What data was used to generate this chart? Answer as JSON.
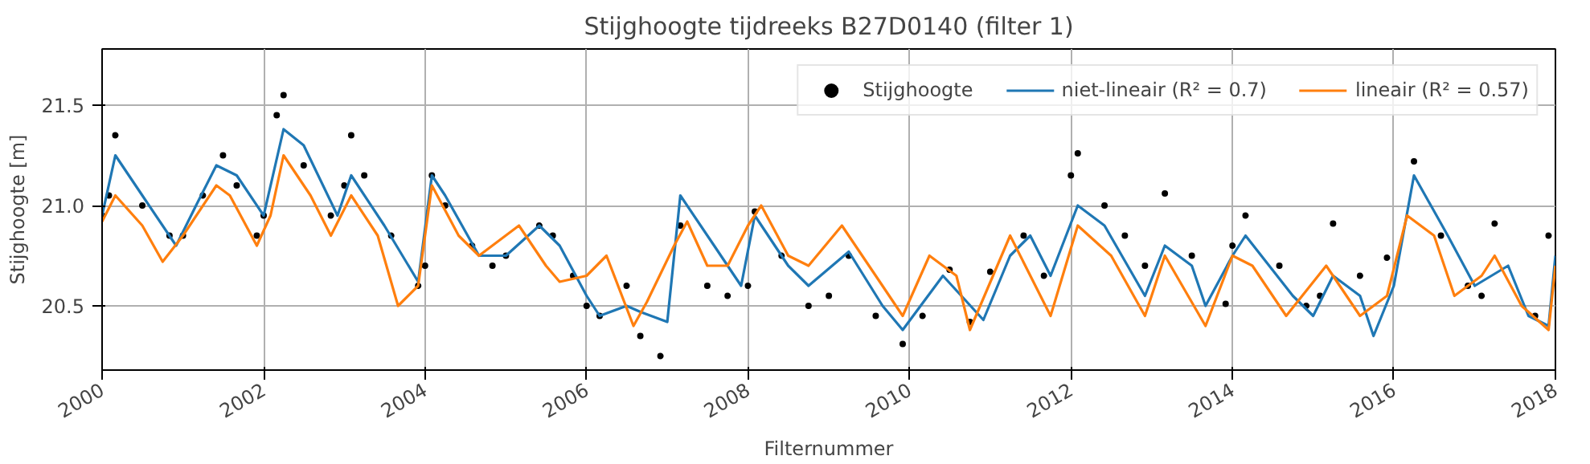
{
  "chart_data": {
    "type": "line",
    "title": "Stijghoogte tijdreeks B27D0140 (filter 1)",
    "xlabel": "Filternummer",
    "ylabel": "Stijghoogte [m]",
    "xlim": [
      "2000",
      "2018"
    ],
    "xticks": [
      "2000",
      "2002",
      "2004",
      "2006",
      "2008",
      "2010",
      "2012",
      "2014",
      "2016",
      "2018"
    ],
    "ylim": [
      20.18,
      21.78
    ],
    "yticks": [
      20.5,
      {
        "value": 21,
        "label": "21.0"
      },
      21.5
    ],
    "grid": true,
    "legend": "top right",
    "series": [
      {
        "name": "Stijghoogte",
        "type": "scatter",
        "marker": "circle",
        "color": "#000000",
        "x": [
          "2000-01",
          "2000-02",
          "2000-03",
          "2000-07",
          "2000-11",
          "2001-01",
          "2001-04",
          "2001-07",
          "2001-09",
          "2001-12",
          "2002-01",
          "2002-03",
          "2002-04",
          "2002-07",
          "2002-11",
          "2003-01",
          "2003-02",
          "2003-04",
          "2003-08",
          "2003-12",
          "2004-01",
          "2004-02",
          "2004-04",
          "2004-08",
          "2004-11",
          "2005-01",
          "2005-06",
          "2005-08",
          "2005-11",
          "2006-01",
          "2006-03",
          "2006-07",
          "2006-09",
          "2006-12",
          "2007-03",
          "2007-07",
          "2007-10",
          "2008-01",
          "2008-02",
          "2008-06",
          "2008-10",
          "2009-01",
          "2009-04",
          "2009-08",
          "2009-12",
          "2010-03",
          "2010-07",
          "2010-10",
          "2011-01",
          "2011-06",
          "2011-09",
          "2012-01",
          "2012-02",
          "2012-06",
          "2012-09",
          "2012-12",
          "2013-03",
          "2013-07",
          "2013-12",
          "2014-01",
          "2014-03",
          "2014-08",
          "2014-12",
          "2015-02",
          "2015-04",
          "2015-08",
          "2015-12",
          "2016-04",
          "2016-08",
          "2016-12",
          "2017-02",
          "2017-04",
          "2017-10",
          "2017-12"
        ],
        "values": [
          20.95,
          21.05,
          21.35,
          21.0,
          20.85,
          20.85,
          21.05,
          21.25,
          21.1,
          20.85,
          20.95,
          21.45,
          21.55,
          21.2,
          20.95,
          21.1,
          21.35,
          21.15,
          20.85,
          20.6,
          20.7,
          21.15,
          21.0,
          20.8,
          20.7,
          20.75,
          20.9,
          20.85,
          20.65,
          20.5,
          20.45,
          20.6,
          20.35,
          20.25,
          20.9,
          20.6,
          20.55,
          20.6,
          20.97,
          20.75,
          20.5,
          20.55,
          20.75,
          20.45,
          20.31,
          20.45,
          20.68,
          20.42,
          20.67,
          20.85,
          20.65,
          21.15,
          21.26,
          21.0,
          20.85,
          20.7,
          21.06,
          20.75,
          20.51,
          20.8,
          20.95,
          20.7,
          20.5,
          20.55,
          20.91,
          20.65,
          20.74,
          21.22,
          20.85,
          20.6,
          20.55,
          20.91,
          20.45,
          20.85
        ]
      },
      {
        "name": "niet-lineair (R² = 0.7)",
        "color": "#1f77b4",
        "x": [
          "2000-01",
          "2000-03",
          "2000-07",
          "2000-12",
          "2001-03",
          "2001-06",
          "2001-09",
          "2002-01",
          "2002-04",
          "2002-07",
          "2002-12",
          "2003-02",
          "2003-07",
          "2003-12",
          "2004-02",
          "2004-04",
          "2004-09",
          "2005-01",
          "2005-06",
          "2005-09",
          "2006-01",
          "2006-03",
          "2006-07",
          "2006-09",
          "2007-01",
          "2007-03",
          "2007-08",
          "2007-12",
          "2008-02",
          "2008-07",
          "2008-10",
          "2009-04",
          "2009-09",
          "2009-12",
          "2010-06",
          "2010-12",
          "2011-04",
          "2011-07",
          "2011-10",
          "2012-02",
          "2012-06",
          "2012-12",
          "2013-03",
          "2013-07",
          "2013-09",
          "2014-01",
          "2014-03",
          "2014-10",
          "2015-01",
          "2015-04",
          "2015-08",
          "2015-10",
          "2016-01",
          "2016-04",
          "2016-09",
          "2017-01",
          "2017-06",
          "2017-09",
          "2017-12",
          "2018-01"
        ],
        "values": [
          20.95,
          21.25,
          21.05,
          20.8,
          21.0,
          21.2,
          21.15,
          20.95,
          21.38,
          21.3,
          20.95,
          21.15,
          20.9,
          20.62,
          21.15,
          21.05,
          20.75,
          20.75,
          20.9,
          20.8,
          20.55,
          20.45,
          20.5,
          20.47,
          20.42,
          21.05,
          20.8,
          20.6,
          20.95,
          20.7,
          20.6,
          20.77,
          20.5,
          20.38,
          20.65,
          20.43,
          20.75,
          20.85,
          20.65,
          21.0,
          20.9,
          20.55,
          20.8,
          20.7,
          20.5,
          20.75,
          20.85,
          20.55,
          20.45,
          20.65,
          20.55,
          20.35,
          20.6,
          21.15,
          20.85,
          20.6,
          20.7,
          20.45,
          20.4,
          20.75
        ]
      },
      {
        "name": "lineair (R² = 0.57)",
        "color": "#ff7f0e",
        "x": [
          "2000-01",
          "2000-03",
          "2000-07",
          "2000-10",
          "2001-01",
          "2001-06",
          "2001-08",
          "2001-12",
          "2002-02",
          "2002-04",
          "2002-08",
          "2002-11",
          "2003-02",
          "2003-06",
          "2003-09",
          "2003-12",
          "2004-02",
          "2004-06",
          "2004-09",
          "2005-03",
          "2005-07",
          "2005-09",
          "2006-01",
          "2006-04",
          "2006-08",
          "2006-10",
          "2007-02",
          "2007-04",
          "2007-07",
          "2007-10",
          "2008-01",
          "2008-03",
          "2008-07",
          "2008-10",
          "2009-03",
          "2009-08",
          "2009-12",
          "2010-04",
          "2010-08",
          "2010-10",
          "2011-04",
          "2011-10",
          "2012-02",
          "2012-07",
          "2012-12",
          "2013-03",
          "2013-09",
          "2014-01",
          "2014-04",
          "2014-09",
          "2015-03",
          "2015-08",
          "2015-12",
          "2016-03",
          "2016-07",
          "2016-10",
          "2017-02",
          "2017-04",
          "2017-08",
          "2017-12",
          "2018-01"
        ],
        "values": [
          20.92,
          21.05,
          20.9,
          20.72,
          20.85,
          21.1,
          21.05,
          20.8,
          20.95,
          21.25,
          21.05,
          20.85,
          21.05,
          20.85,
          20.5,
          20.6,
          21.1,
          20.85,
          20.75,
          20.9,
          20.7,
          20.62,
          20.65,
          20.75,
          20.4,
          20.52,
          20.8,
          20.92,
          20.7,
          20.7,
          20.9,
          21.0,
          20.75,
          20.7,
          20.9,
          20.65,
          20.45,
          20.75,
          20.65,
          20.38,
          20.85,
          20.45,
          20.9,
          20.75,
          20.45,
          20.75,
          20.4,
          20.75,
          20.7,
          20.45,
          20.7,
          20.45,
          20.55,
          20.95,
          20.85,
          20.55,
          20.65,
          20.75,
          20.5,
          20.38,
          20.7
        ]
      }
    ]
  }
}
